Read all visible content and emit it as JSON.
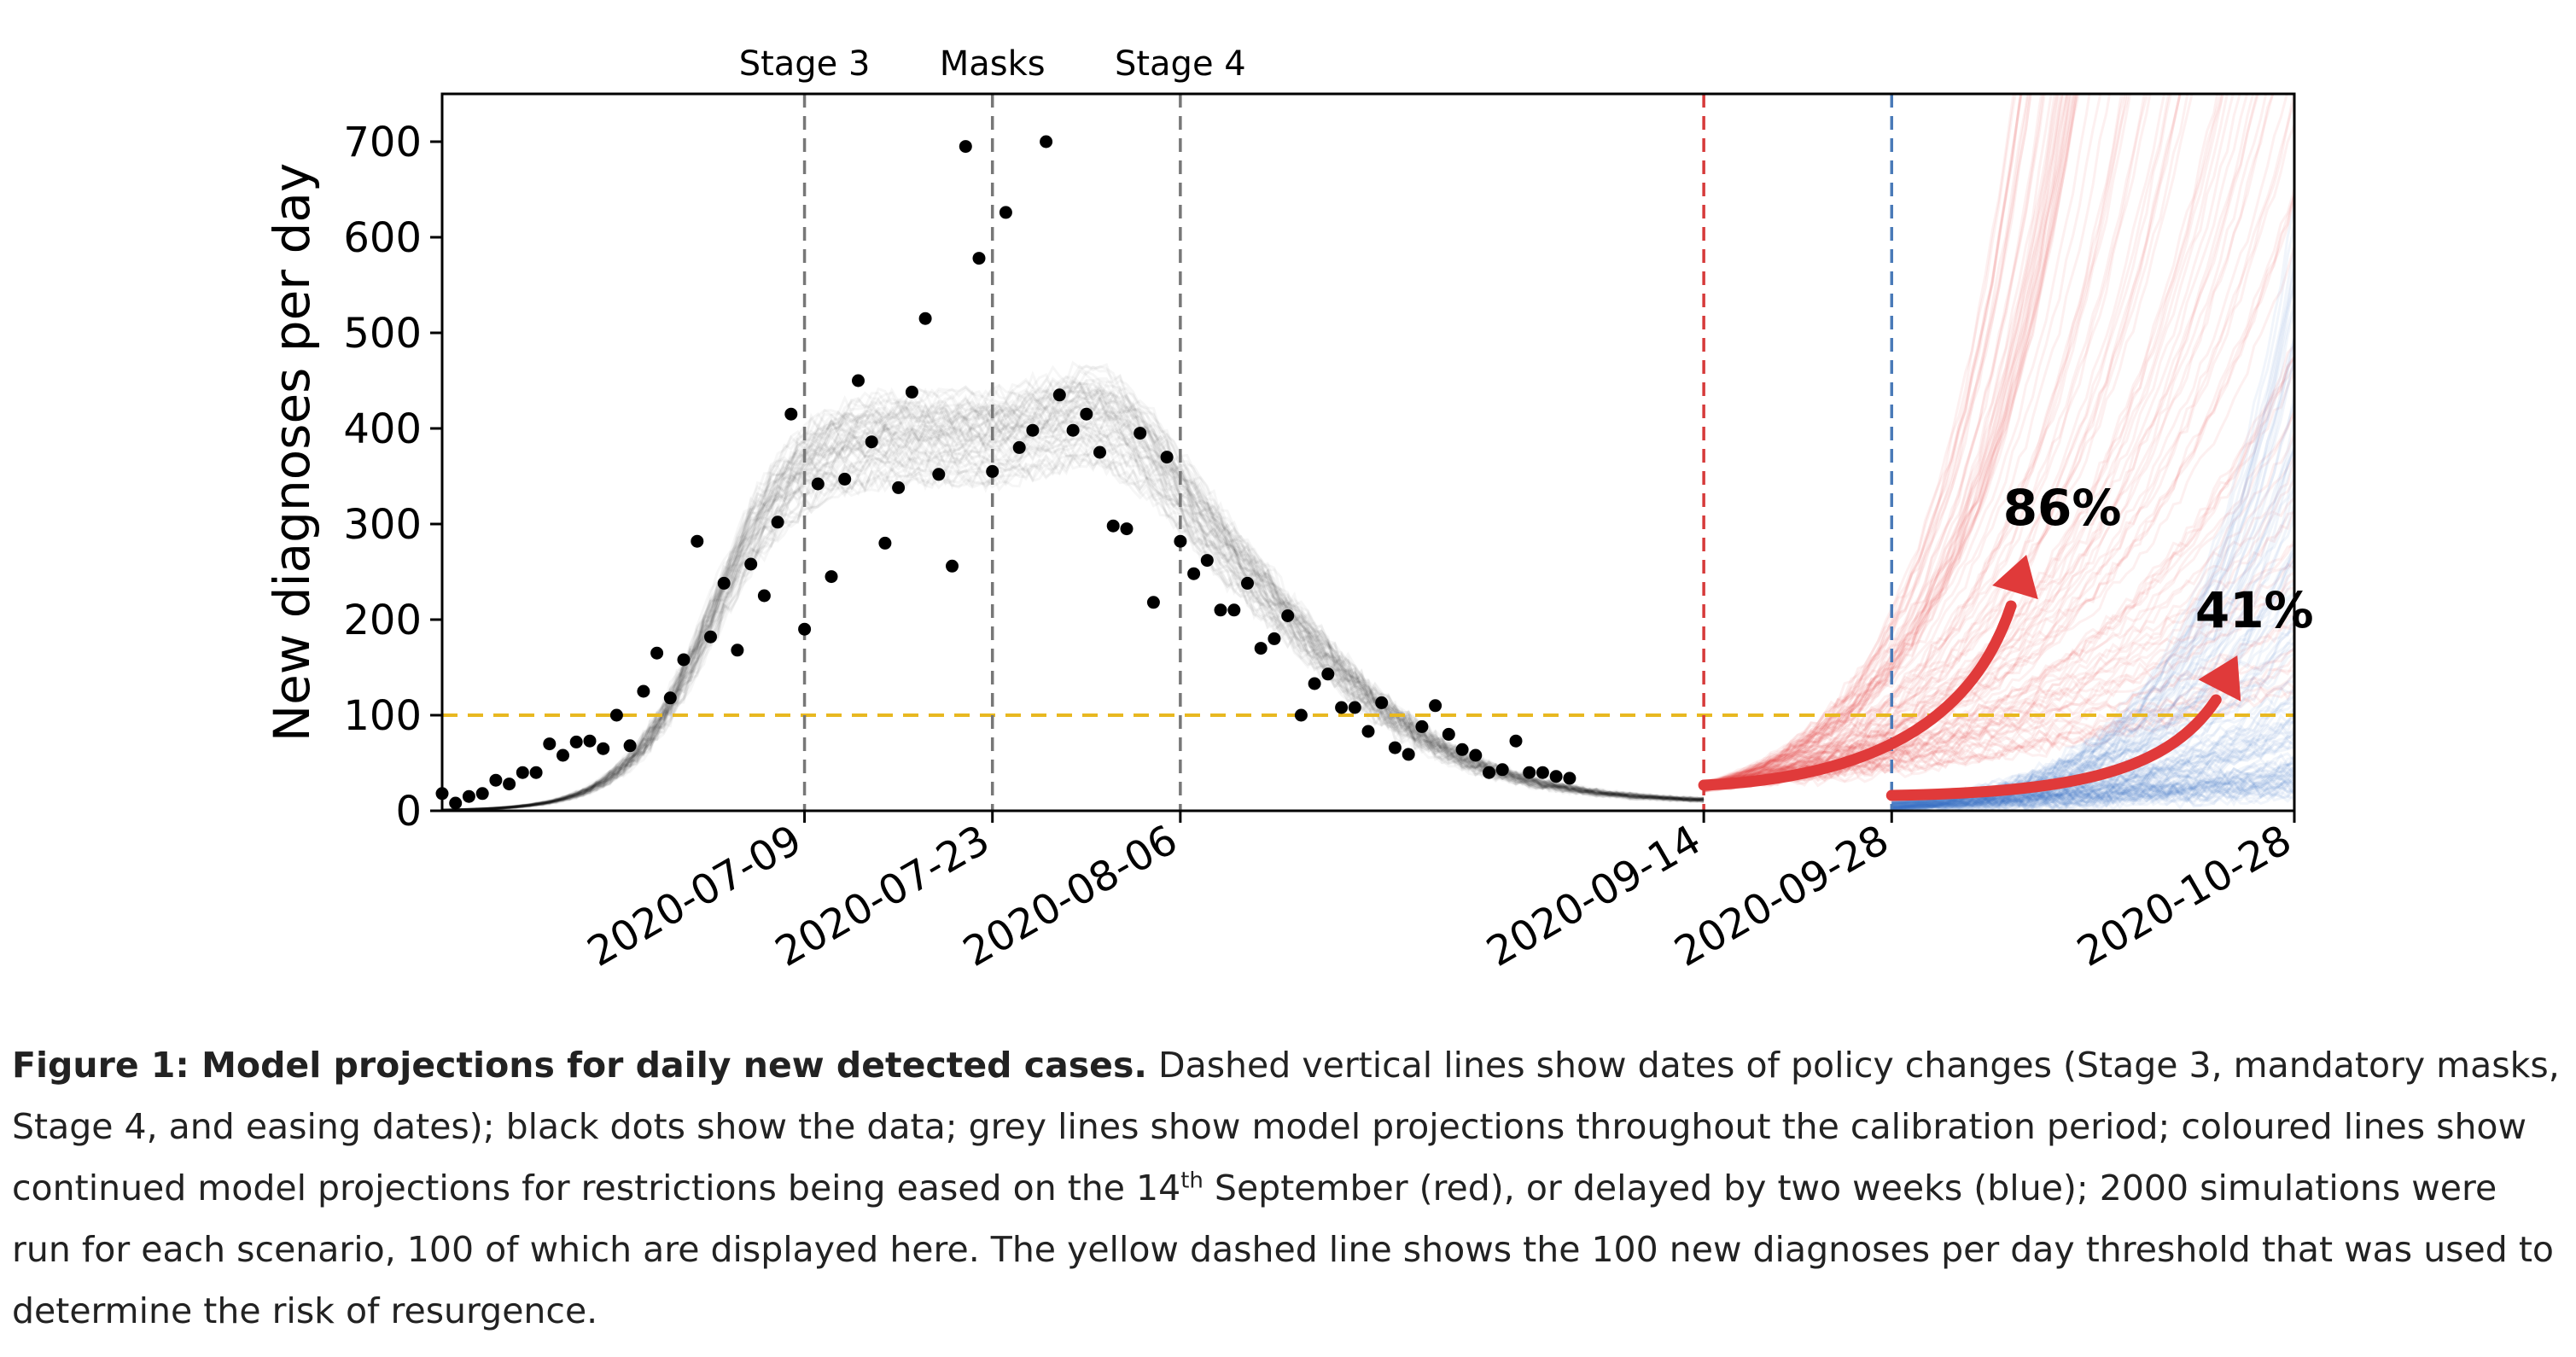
{
  "chart_data": {
    "type": "scatter",
    "title": "",
    "xlabel": "",
    "ylabel": "New diagnoses per day",
    "ylim": [
      0,
      750
    ],
    "xlim": [
      "2020-06-12",
      "2020-10-28"
    ],
    "yticks": [
      0,
      100,
      200,
      300,
      400,
      500,
      600,
      700
    ],
    "xticks": [
      "2020-07-09",
      "2020-07-23",
      "2020-08-06",
      "2020-09-14",
      "2020-09-28",
      "2020-10-28"
    ],
    "grid": false,
    "threshold": {
      "value": 100,
      "color": "#e8b820"
    },
    "events": [
      {
        "date": "2020-07-09",
        "label": "Stage 3",
        "color": "#777777"
      },
      {
        "date": "2020-07-23",
        "label": "Masks",
        "color": "#777777"
      },
      {
        "date": "2020-08-06",
        "label": "Stage 4",
        "color": "#777777"
      },
      {
        "date": "2020-09-14",
        "label": "",
        "color": "#d63a3a"
      },
      {
        "date": "2020-09-28",
        "label": "",
        "color": "#4a7ab8"
      }
    ],
    "series": [
      {
        "type": "scatter",
        "color": "#000000",
        "points": [
          [
            "2020-06-12",
            18
          ],
          [
            "2020-06-13",
            8
          ],
          [
            "2020-06-14",
            15
          ],
          [
            "2020-06-15",
            18
          ],
          [
            "2020-06-16",
            32
          ],
          [
            "2020-06-17",
            28
          ],
          [
            "2020-06-18",
            40
          ],
          [
            "2020-06-19",
            40
          ],
          [
            "2020-06-20",
            70
          ],
          [
            "2020-06-21",
            58
          ],
          [
            "2020-06-22",
            72
          ],
          [
            "2020-06-23",
            73
          ],
          [
            "2020-06-24",
            65
          ],
          [
            "2020-06-25",
            100
          ],
          [
            "2020-06-26",
            68
          ],
          [
            "2020-06-27",
            125
          ],
          [
            "2020-06-28",
            165
          ],
          [
            "2020-06-29",
            118
          ],
          [
            "2020-06-30",
            158
          ],
          [
            "2020-07-01",
            282
          ],
          [
            "2020-07-02",
            182
          ],
          [
            "2020-07-03",
            238
          ],
          [
            "2020-07-04",
            168
          ],
          [
            "2020-07-05",
            258
          ],
          [
            "2020-07-06",
            225
          ],
          [
            "2020-07-07",
            302
          ],
          [
            "2020-07-08",
            415
          ],
          [
            "2020-07-09",
            190
          ],
          [
            "2020-07-10",
            342
          ],
          [
            "2020-07-11",
            245
          ],
          [
            "2020-07-12",
            347
          ],
          [
            "2020-07-13",
            450
          ],
          [
            "2020-07-14",
            386
          ],
          [
            "2020-07-15",
            280
          ],
          [
            "2020-07-16",
            338
          ],
          [
            "2020-07-17",
            438
          ],
          [
            "2020-07-18",
            515
          ],
          [
            "2020-07-19",
            352
          ],
          [
            "2020-07-20",
            256
          ],
          [
            "2020-07-21",
            695
          ],
          [
            "2020-07-22",
            578
          ],
          [
            "2020-07-23",
            355
          ],
          [
            "2020-07-24",
            626
          ],
          [
            "2020-07-25",
            380
          ],
          [
            "2020-07-26",
            398
          ],
          [
            "2020-07-27",
            700
          ],
          [
            "2020-07-28",
            435
          ],
          [
            "2020-07-29",
            398
          ],
          [
            "2020-07-30",
            415
          ],
          [
            "2020-07-31",
            375
          ],
          [
            "2020-08-01",
            298
          ],
          [
            "2020-08-02",
            295
          ],
          [
            "2020-08-03",
            395
          ],
          [
            "2020-08-04",
            218
          ],
          [
            "2020-08-05",
            370
          ],
          [
            "2020-08-06",
            282
          ],
          [
            "2020-08-07",
            248
          ],
          [
            "2020-08-08",
            262
          ],
          [
            "2020-08-09",
            210
          ],
          [
            "2020-08-10",
            210
          ],
          [
            "2020-08-11",
            238
          ],
          [
            "2020-08-12",
            170
          ],
          [
            "2020-08-13",
            180
          ],
          [
            "2020-08-14",
            204
          ],
          [
            "2020-08-15",
            100
          ],
          [
            "2020-08-16",
            133
          ],
          [
            "2020-08-17",
            143
          ],
          [
            "2020-08-18",
            108
          ],
          [
            "2020-08-19",
            108
          ],
          [
            "2020-08-20",
            83
          ],
          [
            "2020-08-21",
            113
          ],
          [
            "2020-08-22",
            66
          ],
          [
            "2020-08-23",
            59
          ],
          [
            "2020-08-24",
            88
          ],
          [
            "2020-08-25",
            110
          ],
          [
            "2020-08-26",
            80
          ],
          [
            "2020-08-27",
            64
          ],
          [
            "2020-08-28",
            58
          ],
          [
            "2020-08-29",
            40
          ],
          [
            "2020-08-30",
            43
          ],
          [
            "2020-08-31",
            73
          ],
          [
            "2020-09-01",
            40
          ],
          [
            "2020-09-02",
            40
          ],
          [
            "2020-09-03",
            36
          ],
          [
            "2020-09-04",
            34
          ]
        ]
      }
    ],
    "annotations": [
      {
        "text": "86%",
        "color": "#000000",
        "arrow_color": "#e03a3a"
      },
      {
        "text": "41%",
        "color": "#000000",
        "arrow_color": "#e03a3a"
      }
    ]
  },
  "caption": {
    "bold": "Figure 1: Model projections for daily new detected cases.",
    "text_before_sup": " Dashed vertical lines show dates of policy changes (Stage 3, mandatory masks, Stage 4, and easing dates); black dots show the data; grey lines show model projections throughout the calibration period; coloured lines show continued model projections for restrictions being eased on the 14",
    "sup": "th",
    "text_after_sup": " September (red), or delayed by two weeks (blue); 2000 simulations were run for each scenario, 100 of which are displayed here. The yellow dashed line shows the 100 new diagnoses per day threshold that was used to determine the risk of resurgence."
  }
}
